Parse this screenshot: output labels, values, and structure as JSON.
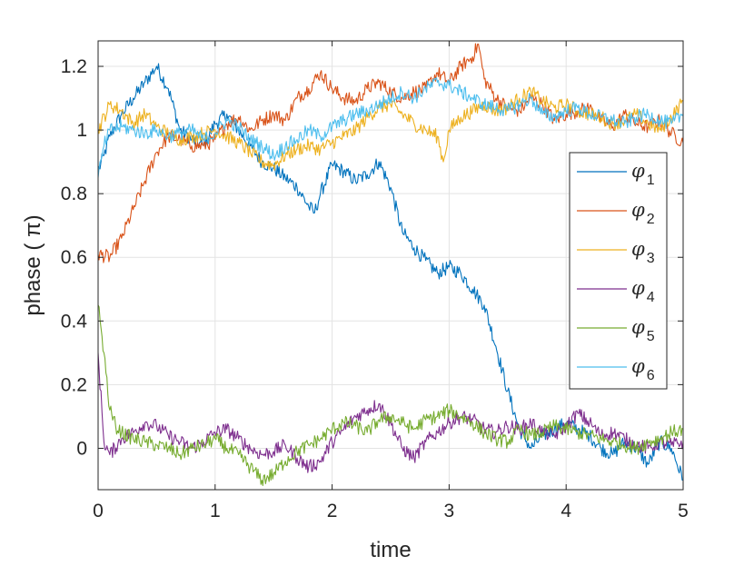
{
  "chart_data": {
    "type": "line",
    "title": "",
    "xlabel": "time",
    "ylabel": "phase (  π)",
    "xlim": [
      0,
      5
    ],
    "ylim": [
      -0.13,
      1.28
    ],
    "xticks": [
      0,
      1,
      2,
      3,
      4,
      5
    ],
    "xtick_labels": [
      "0",
      "1",
      "2",
      "3",
      "4",
      "5"
    ],
    "yticks": [
      0,
      0.2,
      0.4,
      0.6,
      0.8,
      1,
      1.2
    ],
    "ytick_labels": [
      "0",
      "0.2",
      "0.4",
      "0.6",
      "0.8",
      "1",
      "1.2"
    ],
    "grid": true,
    "legend_position": "right",
    "series": [
      {
        "name": "φ",
        "subscript": "1",
        "color": "#0072BD",
        "x": [
          0,
          0.05,
          0.1,
          0.2,
          0.3,
          0.4,
          0.5,
          0.6,
          0.7,
          0.8,
          0.9,
          1.0,
          1.1,
          1.2,
          1.3,
          1.4,
          1.5,
          1.6,
          1.7,
          1.8,
          1.85,
          1.9,
          2.0,
          2.1,
          2.2,
          2.3,
          2.4,
          2.5,
          2.6,
          2.7,
          2.8,
          2.9,
          3.0,
          3.1,
          3.2,
          3.3,
          3.4,
          3.5,
          3.6,
          3.7,
          3.8,
          3.9,
          4.0,
          4.1,
          4.2,
          4.3,
          4.4,
          4.5,
          4.6,
          4.7,
          4.8,
          4.9,
          5.0
        ],
        "y": [
          0.87,
          0.92,
          0.98,
          1.05,
          1.1,
          1.15,
          1.2,
          1.13,
          1.0,
          0.97,
          0.95,
          1.02,
          1.05,
          1.0,
          0.95,
          0.9,
          0.88,
          0.85,
          0.82,
          0.76,
          0.74,
          0.8,
          0.89,
          0.87,
          0.84,
          0.86,
          0.9,
          0.82,
          0.68,
          0.63,
          0.59,
          0.55,
          0.57,
          0.55,
          0.5,
          0.45,
          0.32,
          0.18,
          0.06,
          0.0,
          0.04,
          0.06,
          0.08,
          0.06,
          0.04,
          0.0,
          -0.02,
          0.02,
          0.0,
          -0.05,
          0.02,
          0.0,
          -0.1
        ]
      },
      {
        "name": "φ",
        "subscript": "2",
        "color": "#D95319",
        "x": [
          0,
          0.1,
          0.2,
          0.3,
          0.4,
          0.5,
          0.6,
          0.7,
          0.8,
          0.9,
          1.0,
          1.1,
          1.2,
          1.3,
          1.4,
          1.5,
          1.6,
          1.7,
          1.8,
          1.9,
          2.0,
          2.1,
          2.2,
          2.3,
          2.4,
          2.5,
          2.6,
          2.7,
          2.8,
          2.9,
          3.0,
          3.1,
          3.2,
          3.25,
          3.3,
          3.4,
          3.5,
          3.6,
          3.7,
          3.8,
          3.9,
          4.0,
          4.1,
          4.2,
          4.3,
          4.4,
          4.5,
          4.6,
          4.7,
          4.8,
          4.9,
          5.0
        ],
        "y": [
          0.61,
          0.6,
          0.66,
          0.75,
          0.84,
          0.93,
          0.98,
          0.97,
          0.95,
          0.95,
          0.97,
          1.02,
          1.04,
          1.0,
          1.03,
          1.05,
          1.03,
          1.1,
          1.13,
          1.18,
          1.13,
          1.1,
          1.09,
          1.13,
          1.15,
          1.12,
          1.1,
          1.12,
          1.13,
          1.18,
          1.15,
          1.2,
          1.23,
          1.27,
          1.16,
          1.1,
          1.07,
          1.06,
          1.1,
          1.08,
          1.03,
          1.05,
          1.06,
          1.07,
          1.03,
          1.01,
          1.05,
          1.02,
          1.01,
          1.03,
          0.99,
          0.96
        ]
      },
      {
        "name": "φ",
        "subscript": "3",
        "color": "#EDB120",
        "x": [
          0,
          0.1,
          0.2,
          0.3,
          0.4,
          0.5,
          0.6,
          0.7,
          0.8,
          0.9,
          1.0,
          1.1,
          1.2,
          1.3,
          1.4,
          1.5,
          1.6,
          1.7,
          1.8,
          1.9,
          2.0,
          2.1,
          2.2,
          2.3,
          2.4,
          2.5,
          2.6,
          2.7,
          2.8,
          2.9,
          2.95,
          3.0,
          3.1,
          3.2,
          3.3,
          3.4,
          3.5,
          3.6,
          3.7,
          3.8,
          3.9,
          4.0,
          4.1,
          4.2,
          4.3,
          4.4,
          4.5,
          4.6,
          4.7,
          4.8,
          4.9,
          5.0
        ],
        "y": [
          1.0,
          1.08,
          1.06,
          1.02,
          1.05,
          1.01,
          0.99,
          0.97,
          0.98,
          0.99,
          1.0,
          0.98,
          0.96,
          0.93,
          0.9,
          0.89,
          0.92,
          0.94,
          0.95,
          0.94,
          0.96,
          0.98,
          1.0,
          1.04,
          1.07,
          1.08,
          1.05,
          1.02,
          1.0,
          0.98,
          0.9,
          1.0,
          1.04,
          1.06,
          1.08,
          1.06,
          1.07,
          1.1,
          1.12,
          1.09,
          1.07,
          1.08,
          1.06,
          1.05,
          1.04,
          1.02,
          1.03,
          1.05,
          1.02,
          1.0,
          1.04,
          1.09
        ]
      },
      {
        "name": "φ",
        "subscript": "4",
        "color": "#7E2F8E",
        "x": [
          0,
          0.05,
          0.1,
          0.2,
          0.3,
          0.4,
          0.5,
          0.6,
          0.7,
          0.8,
          0.9,
          1.0,
          1.1,
          1.2,
          1.3,
          1.4,
          1.5,
          1.6,
          1.7,
          1.8,
          1.9,
          2.0,
          2.1,
          2.2,
          2.3,
          2.4,
          2.5,
          2.6,
          2.7,
          2.8,
          2.9,
          3.0,
          3.1,
          3.2,
          3.3,
          3.4,
          3.5,
          3.6,
          3.7,
          3.8,
          3.9,
          4.0,
          4.1,
          4.2,
          4.3,
          4.4,
          4.5,
          4.6,
          4.7,
          4.8,
          4.9,
          5.0
        ],
        "y": [
          0.3,
          0.02,
          -0.02,
          0.03,
          0.05,
          0.08,
          0.07,
          0.04,
          0.02,
          0.0,
          0.02,
          0.05,
          0.06,
          0.03,
          0.0,
          -0.02,
          -0.01,
          0.01,
          -0.03,
          -0.06,
          -0.04,
          0.02,
          0.06,
          0.1,
          0.12,
          0.14,
          0.08,
          0.0,
          -0.03,
          0.02,
          0.05,
          0.08,
          0.1,
          0.09,
          0.06,
          0.05,
          0.07,
          0.06,
          0.08,
          0.05,
          0.04,
          0.07,
          0.11,
          0.08,
          0.04,
          0.05,
          0.03,
          0.01,
          0.0,
          0.02,
          0.01,
          0.02
        ]
      },
      {
        "name": "φ",
        "subscript": "5",
        "color": "#77AC30",
        "x": [
          0,
          0.05,
          0.1,
          0.15,
          0.2,
          0.3,
          0.4,
          0.5,
          0.6,
          0.7,
          0.8,
          0.9,
          1.0,
          1.1,
          1.2,
          1.3,
          1.4,
          1.5,
          1.6,
          1.7,
          1.8,
          1.9,
          2.0,
          2.1,
          2.2,
          2.3,
          2.4,
          2.5,
          2.6,
          2.7,
          2.8,
          2.9,
          3.0,
          3.1,
          3.2,
          3.3,
          3.4,
          3.5,
          3.6,
          3.7,
          3.8,
          3.9,
          4.0,
          4.1,
          4.2,
          4.3,
          4.4,
          4.5,
          4.6,
          4.7,
          4.8,
          4.9,
          5.0
        ],
        "y": [
          0.45,
          0.3,
          0.12,
          0.07,
          0.05,
          0.03,
          0.02,
          0.01,
          0.0,
          -0.02,
          0.0,
          0.01,
          0.03,
          0.0,
          -0.02,
          -0.06,
          -0.1,
          -0.08,
          -0.04,
          -0.01,
          0.01,
          0.03,
          0.06,
          0.08,
          0.07,
          0.05,
          0.09,
          0.1,
          0.08,
          0.06,
          0.09,
          0.1,
          0.12,
          0.1,
          0.08,
          0.05,
          0.03,
          0.02,
          0.06,
          0.04,
          0.05,
          0.07,
          0.06,
          0.05,
          0.04,
          0.03,
          0.02,
          0.01,
          0.0,
          0.02,
          0.03,
          0.05,
          0.06
        ]
      },
      {
        "name": "φ",
        "subscript": "6",
        "color": "#4DBEEE",
        "x": [
          0,
          0.05,
          0.1,
          0.2,
          0.3,
          0.4,
          0.5,
          0.6,
          0.7,
          0.8,
          0.9,
          1.0,
          1.1,
          1.2,
          1.3,
          1.4,
          1.5,
          1.6,
          1.7,
          1.8,
          1.9,
          2.0,
          2.1,
          2.2,
          2.3,
          2.4,
          2.5,
          2.6,
          2.7,
          2.8,
          2.9,
          3.0,
          3.1,
          3.2,
          3.3,
          3.4,
          3.5,
          3.6,
          3.7,
          3.8,
          3.9,
          4.0,
          4.1,
          4.2,
          4.3,
          4.4,
          4.5,
          4.6,
          4.7,
          4.8,
          4.9,
          5.0
        ],
        "y": [
          0.85,
          0.95,
          1.0,
          1.01,
          1.0,
          0.99,
          1.0,
          0.98,
          0.99,
          1.0,
          0.97,
          0.99,
          1.03,
          1.01,
          0.97,
          0.95,
          0.92,
          0.95,
          0.97,
          1.0,
          0.98,
          1.01,
          1.03,
          1.05,
          1.06,
          1.08,
          1.1,
          1.12,
          1.1,
          1.13,
          1.15,
          1.14,
          1.12,
          1.1,
          1.08,
          1.07,
          1.06,
          1.08,
          1.1,
          1.05,
          1.04,
          1.06,
          1.07,
          1.05,
          1.04,
          1.03,
          1.02,
          1.04,
          1.05,
          1.03,
          1.02,
          1.05
        ]
      }
    ]
  }
}
